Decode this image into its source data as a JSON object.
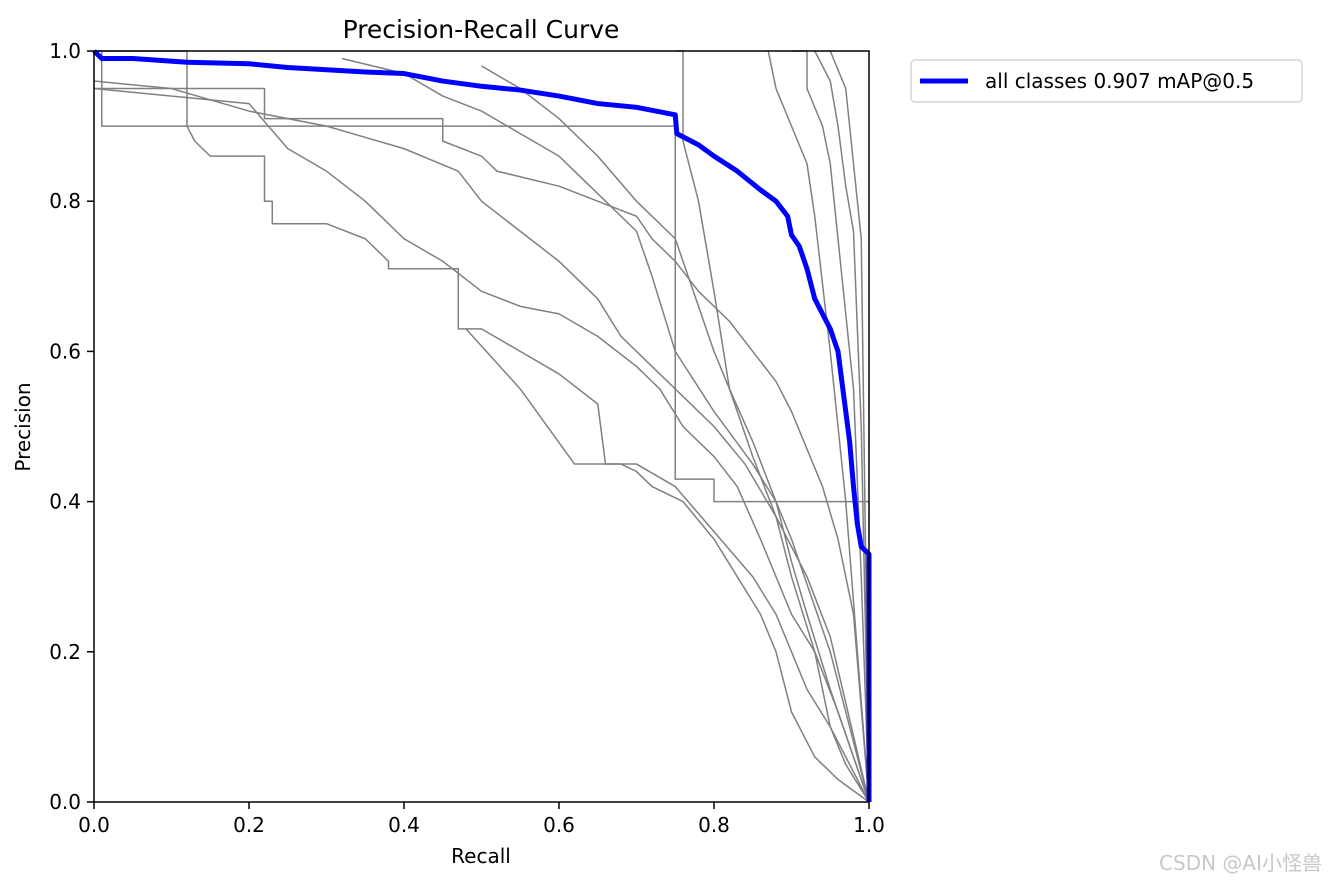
{
  "chart_data": {
    "type": "line",
    "title": "Precision-Recall Curve",
    "xlabel": "Recall",
    "ylabel": "Precision",
    "xlim": [
      0,
      1
    ],
    "ylim": [
      0,
      1
    ],
    "xticks": [
      "0.0",
      "0.2",
      "0.4",
      "0.6",
      "0.8",
      "1.0"
    ],
    "yticks": [
      "0.0",
      "0.2",
      "0.4",
      "0.6",
      "0.8",
      "1.0"
    ],
    "grid": false,
    "legend_position": "outside top-right",
    "series": [
      {
        "name": "all classes 0.907 mAP@0.5",
        "color": "#0000ff",
        "x": [
          0,
          0.01,
          0.05,
          0.12,
          0.2,
          0.25,
          0.3,
          0.35,
          0.4,
          0.45,
          0.5,
          0.55,
          0.6,
          0.65,
          0.7,
          0.75,
          0.752,
          0.78,
          0.8,
          0.83,
          0.86,
          0.88,
          0.895,
          0.9,
          0.91,
          0.92,
          0.93,
          0.94,
          0.95,
          0.96,
          0.965,
          0.97,
          0.975,
          0.98,
          0.985,
          0.99,
          1.0,
          1.0
        ],
        "y": [
          1.0,
          0.99,
          0.99,
          0.985,
          0.983,
          0.978,
          0.975,
          0.972,
          0.97,
          0.96,
          0.953,
          0.948,
          0.94,
          0.93,
          0.925,
          0.915,
          0.89,
          0.875,
          0.86,
          0.84,
          0.815,
          0.8,
          0.78,
          0.755,
          0.74,
          0.71,
          0.67,
          0.65,
          0.63,
          0.6,
          0.56,
          0.52,
          0.48,
          0.42,
          0.37,
          0.34,
          0.33,
          0.0
        ]
      },
      {
        "color": "#808080",
        "x": [
          0,
          0.01,
          0.01,
          0.75,
          0.75,
          0.8,
          0.8,
          1.0
        ],
        "y": [
          1.0,
          1.0,
          0.9,
          0.9,
          0.43,
          0.43,
          0.4,
          0.4
        ]
      },
      {
        "color": "#808080",
        "x": [
          0,
          0.12,
          0.12,
          0.22,
          0.22,
          0.45,
          0.45,
          0.5,
          0.52,
          0.6,
          0.65,
          0.7,
          0.72,
          0.75,
          0.78,
          0.82,
          0.85,
          0.88,
          0.9,
          0.92,
          0.94,
          0.96,
          0.98,
          1.0
        ],
        "y": [
          1.0,
          1.0,
          0.95,
          0.95,
          0.91,
          0.91,
          0.88,
          0.86,
          0.84,
          0.82,
          0.8,
          0.78,
          0.75,
          0.72,
          0.68,
          0.64,
          0.6,
          0.56,
          0.52,
          0.47,
          0.42,
          0.35,
          0.25,
          0.0
        ]
      },
      {
        "color": "#808080",
        "x": [
          0,
          0.12,
          0.12,
          0.13,
          0.15,
          0.22,
          0.22,
          0.23,
          0.23,
          0.3,
          0.35,
          0.38,
          0.38,
          0.47,
          0.47,
          0.5,
          0.55,
          0.6,
          0.65,
          0.66,
          0.7,
          0.75,
          0.8,
          0.85,
          0.88,
          0.9,
          0.92,
          0.95,
          0.97,
          1.0
        ],
        "y": [
          0.95,
          0.95,
          0.9,
          0.88,
          0.86,
          0.86,
          0.8,
          0.8,
          0.77,
          0.77,
          0.75,
          0.72,
          0.71,
          0.71,
          0.63,
          0.63,
          0.6,
          0.57,
          0.53,
          0.45,
          0.45,
          0.42,
          0.36,
          0.3,
          0.25,
          0.2,
          0.15,
          0.1,
          0.05,
          0.0
        ]
      },
      {
        "color": "#808080",
        "x": [
          0,
          0.2,
          0.25,
          0.3,
          0.35,
          0.4,
          0.45,
          0.5,
          0.55,
          0.6,
          0.65,
          0.7,
          0.73,
          0.76,
          0.8,
          0.83,
          0.86,
          0.88,
          0.9,
          0.93,
          0.96,
          1.0
        ],
        "y": [
          0.95,
          0.93,
          0.87,
          0.84,
          0.8,
          0.75,
          0.72,
          0.68,
          0.66,
          0.65,
          0.62,
          0.58,
          0.55,
          0.5,
          0.46,
          0.42,
          0.35,
          0.3,
          0.25,
          0.2,
          0.12,
          0.0
        ]
      },
      {
        "color": "#808080",
        "x": [
          0,
          0.1,
          0.2,
          0.3,
          0.4,
          0.47,
          0.5,
          0.55,
          0.6,
          0.65,
          0.68,
          0.72,
          0.76,
          0.8,
          0.84,
          0.88,
          0.92,
          0.95,
          1.0
        ],
        "y": [
          0.96,
          0.95,
          0.92,
          0.9,
          0.87,
          0.84,
          0.8,
          0.76,
          0.72,
          0.67,
          0.62,
          0.58,
          0.54,
          0.5,
          0.45,
          0.38,
          0.3,
          0.22,
          0.0
        ]
      },
      {
        "color": "#808080",
        "x": [
          0.48,
          0.55,
          0.62,
          0.68,
          0.7,
          0.72,
          0.76,
          0.8,
          0.83,
          0.86,
          0.88,
          0.9,
          0.93,
          0.96,
          1.0
        ],
        "y": [
          0.63,
          0.55,
          0.45,
          0.45,
          0.44,
          0.42,
          0.4,
          0.35,
          0.3,
          0.25,
          0.2,
          0.12,
          0.06,
          0.03,
          0.0
        ]
      },
      {
        "color": "#808080",
        "x": [
          0.32,
          0.4,
          0.45,
          0.5,
          0.55,
          0.6,
          0.62,
          0.66,
          0.7,
          0.72,
          0.75,
          0.8,
          0.85,
          0.88,
          0.9,
          0.95,
          1.0
        ],
        "y": [
          0.99,
          0.97,
          0.94,
          0.92,
          0.89,
          0.86,
          0.84,
          0.8,
          0.76,
          0.7,
          0.6,
          0.52,
          0.45,
          0.4,
          0.35,
          0.2,
          0.0
        ]
      },
      {
        "color": "#808080",
        "x": [
          0.5,
          0.55,
          0.6,
          0.65,
          0.7,
          0.75,
          0.8,
          0.82,
          0.85,
          0.88,
          0.9,
          0.92,
          0.95,
          1.0
        ],
        "y": [
          0.98,
          0.95,
          0.91,
          0.86,
          0.8,
          0.75,
          0.6,
          0.55,
          0.48,
          0.4,
          0.32,
          0.25,
          0.15,
          0.0
        ]
      },
      {
        "color": "#808080",
        "x": [
          0.75,
          0.76,
          0.76,
          0.78,
          0.8,
          0.82,
          0.85,
          0.88,
          0.9,
          0.93,
          0.95,
          1.0
        ],
        "y": [
          1.0,
          1.0,
          0.88,
          0.8,
          0.68,
          0.55,
          0.46,
          0.38,
          0.3,
          0.2,
          0.1,
          0.0
        ]
      },
      {
        "color": "#808080",
        "x": [
          0.87,
          0.88,
          0.9,
          0.92,
          0.93,
          0.95,
          0.97,
          1.0
        ],
        "y": [
          1.0,
          0.95,
          0.9,
          0.85,
          0.78,
          0.6,
          0.4,
          0.0
        ]
      },
      {
        "color": "#808080",
        "x": [
          0.9,
          0.92,
          0.92,
          0.94,
          0.95,
          0.96,
          0.98,
          0.99,
          1.0
        ],
        "y": [
          1.0,
          1.0,
          0.95,
          0.9,
          0.85,
          0.75,
          0.55,
          0.3,
          0.0
        ]
      },
      {
        "color": "#808080",
        "x": [
          0.93,
          0.95,
          0.96,
          0.97,
          0.98,
          0.99,
          1.0
        ],
        "y": [
          1.0,
          0.96,
          0.9,
          0.82,
          0.76,
          0.5,
          0.0
        ]
      },
      {
        "color": "#808080",
        "x": [
          0.95,
          0.97,
          0.98,
          0.99,
          1.0
        ],
        "y": [
          1.0,
          0.95,
          0.85,
          0.75,
          0.0
        ]
      }
    ]
  },
  "watermark": "CSDN @AI小怪兽"
}
